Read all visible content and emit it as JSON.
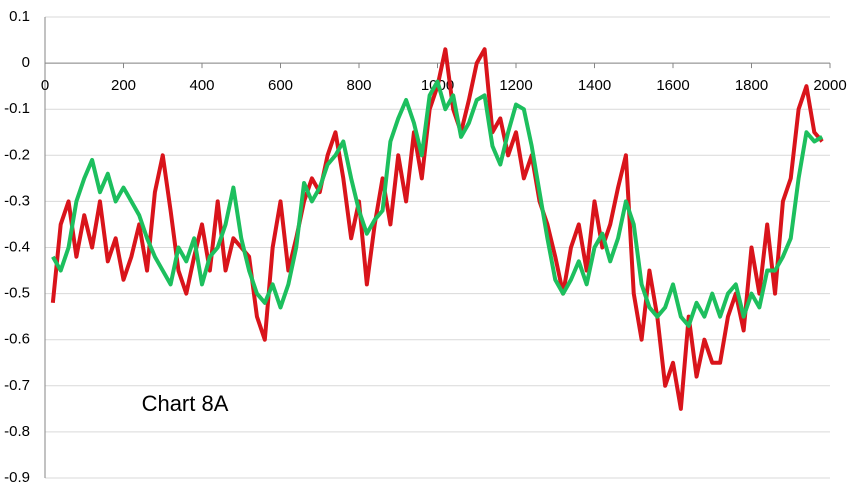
{
  "chart_data": {
    "type": "line",
    "annotation": "Chart 8A",
    "x": [
      20,
      40,
      60,
      80,
      100,
      120,
      140,
      160,
      180,
      200,
      220,
      240,
      260,
      280,
      300,
      320,
      340,
      360,
      380,
      400,
      420,
      440,
      460,
      480,
      500,
      520,
      540,
      560,
      580,
      600,
      620,
      640,
      660,
      680,
      700,
      720,
      740,
      760,
      780,
      800,
      820,
      840,
      860,
      880,
      900,
      920,
      940,
      960,
      980,
      1000,
      1020,
      1040,
      1060,
      1080,
      1100,
      1120,
      1140,
      1160,
      1180,
      1200,
      1220,
      1240,
      1260,
      1280,
      1300,
      1320,
      1340,
      1360,
      1380,
      1400,
      1420,
      1440,
      1460,
      1480,
      1500,
      1520,
      1540,
      1560,
      1580,
      1600,
      1620,
      1640,
      1660,
      1680,
      1700,
      1720,
      1740,
      1760,
      1780,
      1800,
      1820,
      1840,
      1860,
      1880,
      1900,
      1920,
      1940,
      1960,
      1980
    ],
    "series": [
      {
        "color": "#d9141b",
        "values": [
          -0.52,
          -0.35,
          -0.3,
          -0.42,
          -0.33,
          -0.4,
          -0.3,
          -0.43,
          -0.38,
          -0.47,
          -0.42,
          -0.35,
          -0.45,
          -0.28,
          -0.2,
          -0.32,
          -0.45,
          -0.5,
          -0.42,
          -0.35,
          -0.45,
          -0.3,
          -0.45,
          -0.38,
          -0.4,
          -0.42,
          -0.55,
          -0.6,
          -0.4,
          -0.3,
          -0.45,
          -0.38,
          -0.3,
          -0.25,
          -0.28,
          -0.2,
          -0.15,
          -0.25,
          -0.38,
          -0.3,
          -0.48,
          -0.35,
          -0.25,
          -0.35,
          -0.2,
          -0.3,
          -0.15,
          -0.25,
          -0.1,
          -0.05,
          0.03,
          -0.1,
          -0.15,
          -0.08,
          0.0,
          0.03,
          -0.15,
          -0.12,
          -0.2,
          -0.15,
          -0.25,
          -0.2,
          -0.3,
          -0.35,
          -0.42,
          -0.5,
          -0.4,
          -0.35,
          -0.45,
          -0.3,
          -0.4,
          -0.35,
          -0.27,
          -0.2,
          -0.5,
          -0.6,
          -0.45,
          -0.55,
          -0.7,
          -0.65,
          -0.75,
          -0.55,
          -0.68,
          -0.6,
          -0.65,
          -0.65,
          -0.55,
          -0.5,
          -0.58,
          -0.4,
          -0.5,
          -0.35,
          -0.5,
          -0.3,
          -0.25,
          -0.1,
          -0.05,
          -0.15,
          -0.17
        ]
      },
      {
        "color": "#1dbf5e",
        "values": [
          -0.42,
          -0.45,
          -0.4,
          -0.3,
          -0.25,
          -0.21,
          -0.28,
          -0.24,
          -0.3,
          -0.27,
          -0.3,
          -0.33,
          -0.38,
          -0.42,
          -0.45,
          -0.48,
          -0.4,
          -0.43,
          -0.38,
          -0.48,
          -0.42,
          -0.4,
          -0.35,
          -0.27,
          -0.38,
          -0.45,
          -0.5,
          -0.52,
          -0.48,
          -0.53,
          -0.48,
          -0.4,
          -0.26,
          -0.3,
          -0.27,
          -0.22,
          -0.2,
          -0.17,
          -0.25,
          -0.32,
          -0.37,
          -0.34,
          -0.32,
          -0.17,
          -0.12,
          -0.08,
          -0.13,
          -0.2,
          -0.07,
          -0.04,
          -0.1,
          -0.07,
          -0.16,
          -0.13,
          -0.08,
          -0.07,
          -0.18,
          -0.22,
          -0.15,
          -0.09,
          -0.1,
          -0.18,
          -0.28,
          -0.38,
          -0.47,
          -0.5,
          -0.47,
          -0.43,
          -0.48,
          -0.4,
          -0.37,
          -0.43,
          -0.38,
          -0.3,
          -0.35,
          -0.48,
          -0.53,
          -0.55,
          -0.53,
          -0.48,
          -0.55,
          -0.57,
          -0.52,
          -0.55,
          -0.5,
          -0.55,
          -0.5,
          -0.48,
          -0.55,
          -0.5,
          -0.53,
          -0.45,
          -0.45,
          -0.42,
          -0.38,
          -0.25,
          -0.15,
          -0.17,
          -0.16
        ]
      }
    ],
    "xlim": [
      0,
      2000
    ],
    "xticks": [
      0,
      200,
      400,
      600,
      800,
      1000,
      1200,
      1400,
      1600,
      1800,
      2000
    ],
    "ylim": [
      -0.9,
      0.1
    ],
    "yticks": [
      0.1,
      0,
      -0.1,
      -0.2,
      -0.3,
      -0.4,
      -0.5,
      -0.6,
      -0.7,
      -0.8,
      -0.9
    ],
    "grid": true
  }
}
